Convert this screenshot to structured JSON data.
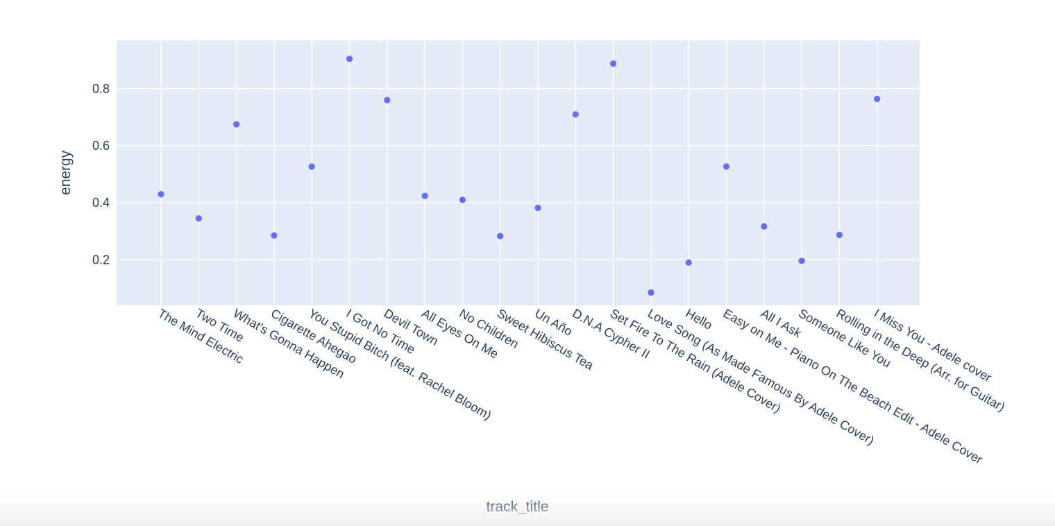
{
  "chart_data": {
    "type": "scatter",
    "title": "",
    "xlabel": "track_title",
    "ylabel": "energy",
    "ylim": [
      0.04,
      0.97
    ],
    "yticks": [
      0.2,
      0.4,
      0.6,
      0.8
    ],
    "ytick_labels": [
      "0.2",
      "0.4",
      "0.6",
      "0.8"
    ],
    "grid": true,
    "legend": "none",
    "colors": {
      "marker": "#636efa",
      "plot_bg": "#e5ecf6",
      "grid": "#ffffff",
      "text": "#2a3f5f"
    },
    "categories": [
      "The Mind Electric",
      "Two Time",
      "What's Gonna Happen",
      "Cigarette Ahegao",
      "You Stupid Bitch (feat. Rachel Bloom)",
      "I Got No Time",
      "Devil Town",
      "All Eyes On Me",
      "No Children",
      "Sweet Hibiscus Tea",
      "Un Año",
      "D.N.A Cypher II",
      "Set Fire To The Rain (Adele Cover)",
      "Love Song (As Made Famous By Adele Cover)",
      "Hello",
      "Easy on Me - Piano On The Beach Edit - Adele Cover",
      "All I Ask",
      "Someone Like You",
      "Rolling in the Deep (Arr. for Guitar)",
      "I Miss You - Adele cover"
    ],
    "values": [
      0.43,
      0.345,
      0.675,
      0.285,
      0.527,
      0.905,
      0.76,
      0.424,
      0.41,
      0.283,
      0.382,
      0.71,
      0.888,
      0.085,
      0.19,
      0.527,
      0.317,
      0.196,
      0.287,
      0.764
    ]
  }
}
